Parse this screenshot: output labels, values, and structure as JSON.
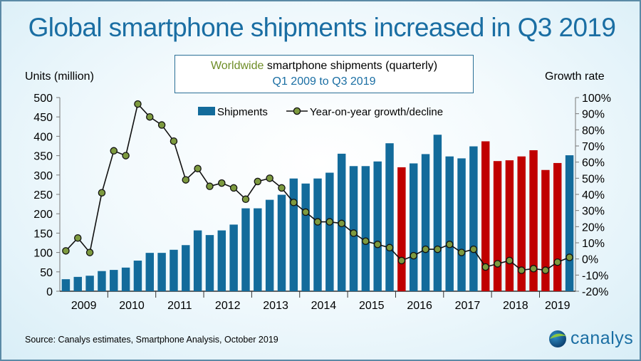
{
  "title": "Global smartphone shipments increased in Q3 2019",
  "subtitle": {
    "highlight": "Worldwide",
    "line1_rest": " smartphone shipments (quarterly)",
    "line2": "Q1 2009 to Q3 2019"
  },
  "source": "Source: Canalys estimates, Smartphone Analysis, October 2019",
  "logo": {
    "text": "canalys"
  },
  "colors": {
    "bar_growth": "#136b9b",
    "bar_decline": "#c00000",
    "marker": "#7d9a3f",
    "line": "#111111",
    "title": "#1a6ea3",
    "highlight": "#6e8d27"
  },
  "chart_data": {
    "type": "bar+line",
    "xlabel": "",
    "ylabel": "Units (million)",
    "y2label": "Growth rate",
    "ylim": [
      0,
      500
    ],
    "y2lim": [
      -20,
      100
    ],
    "yticks": [
      "0",
      "50",
      "100",
      "150",
      "200",
      "250",
      "300",
      "350",
      "400",
      "450",
      "500"
    ],
    "y2ticks": [
      "-20%",
      "-10%",
      "0%",
      "10%",
      "20%",
      "30%",
      "40%",
      "50%",
      "60%",
      "70%",
      "80%",
      "90%",
      "100%"
    ],
    "years": [
      "2009",
      "2010",
      "2011",
      "2012",
      "2013",
      "2014",
      "2015",
      "2016",
      "2017",
      "2018",
      "2019"
    ],
    "legend": {
      "placement": "top",
      "entries": [
        "Shipments",
        "Year-on-year growth/decline"
      ]
    },
    "grid": false,
    "quarters_per_year": 4,
    "series": [
      {
        "name": "Shipments",
        "axis": "left",
        "type": "bar",
        "values": [
          31,
          37,
          40,
          52,
          55,
          61,
          79,
          99,
          99,
          107,
          119,
          157,
          145,
          157,
          172,
          214,
          214,
          236,
          249,
          291,
          278,
          291,
          306,
          355,
          323,
          323,
          335,
          382,
          320,
          330,
          354,
          404,
          348,
          343,
          374,
          387,
          336,
          338,
          348,
          364,
          313,
          331,
          351
        ]
      },
      {
        "name": "Year-on-year growth/decline",
        "axis": "right",
        "type": "line",
        "unit": "%",
        "values": [
          5,
          13,
          4,
          41,
          67,
          64,
          96,
          88,
          83,
          73,
          49,
          56,
          45,
          47,
          44,
          37,
          48,
          50,
          44,
          35,
          29,
          23,
          23,
          22,
          16,
          11,
          9,
          7,
          -1,
          2,
          6,
          6,
          9,
          4,
          6,
          -5,
          -3,
          -1,
          -7,
          -6,
          -7,
          -2,
          1
        ]
      }
    ]
  }
}
